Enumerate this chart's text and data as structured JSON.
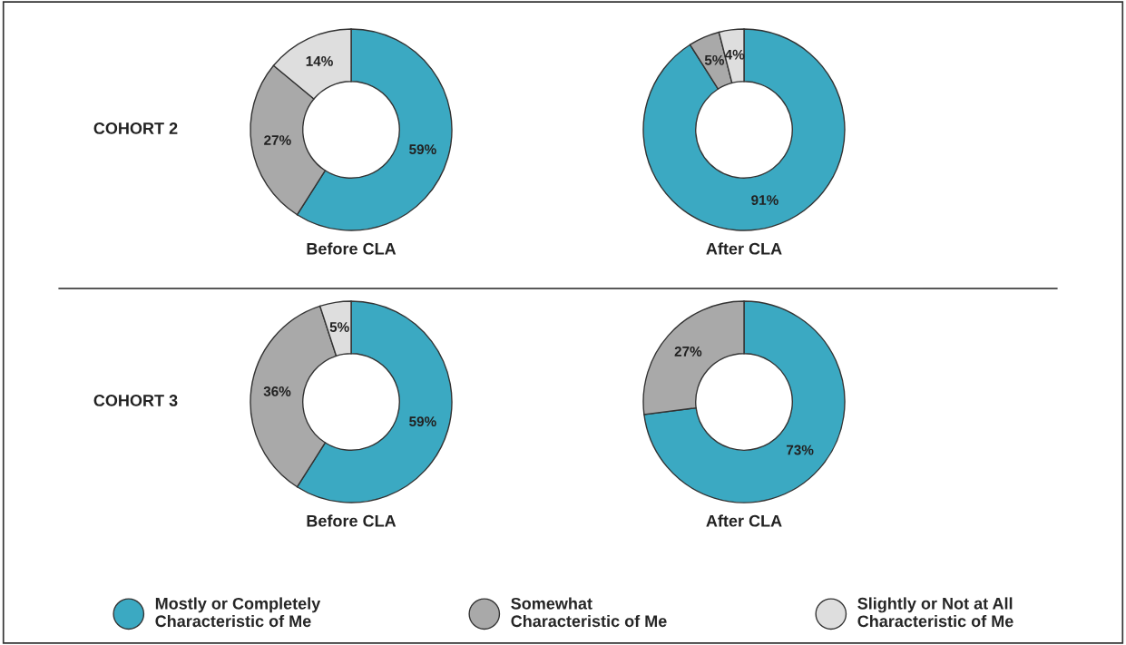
{
  "chart_data": [
    {
      "type": "donut",
      "title": "Before CLA",
      "annotations": [
        "COHORT 2"
      ],
      "categories": [
        "Mostly or Completely\nCharacteristic of Me",
        "Somewhat\nCharacteristic of Me",
        "Slightly or Not at All\nCharacteristic of Me"
      ],
      "values": [
        59,
        27,
        14
      ],
      "colors": [
        "#3ba9c2",
        "#a9a9a9",
        "#dedede"
      ],
      "value_labels": [
        "59%",
        "27%",
        "14%"
      ],
      "legend": "bottom"
    },
    {
      "type": "donut",
      "title": "After CLA",
      "categories": [
        null,
        null,
        null
      ],
      "values": [
        91,
        5,
        4
      ],
      "colors": [
        "#3ba9c2",
        "#a9a9a9",
        "#dedede"
      ],
      "value_labels": [
        "91%",
        "5%",
        "4%"
      ]
    },
    {
      "type": "donut",
      "title": "Before CLA",
      "annotations": [
        "COHORT 3"
      ],
      "categories": [
        null,
        null,
        null
      ],
      "values": [
        59,
        36,
        5
      ],
      "colors": [
        "#3ba9c2",
        "#a9a9a9",
        "#dedede"
      ],
      "value_labels": [
        "59%",
        "36%",
        "5%"
      ]
    },
    {
      "type": "donut",
      "title": "After CLA",
      "categories": [
        null,
        null
      ],
      "values": [
        73,
        27
      ],
      "colors": [
        "#3ba9c2",
        "#a9a9a9"
      ],
      "value_labels": [
        "73%",
        "27%"
      ]
    }
  ]
}
